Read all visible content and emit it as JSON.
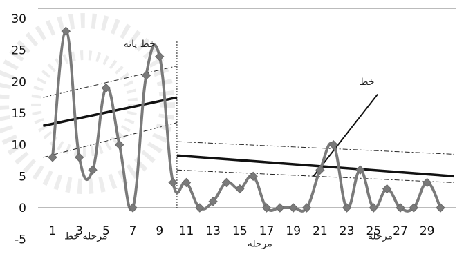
{
  "chart_data": {
    "type": "line",
    "title": "",
    "xlabel": "",
    "ylabel": "",
    "ylim": [
      -5,
      30
    ],
    "xlim": [
      1,
      30
    ],
    "y_ticks": [
      "-5",
      "0",
      "5",
      "10",
      "15",
      "20",
      "25",
      "30"
    ],
    "x_ticks": [
      "1",
      "3",
      "5",
      "7",
      "9",
      "11",
      "13",
      "15",
      "17",
      "19",
      "21",
      "23",
      "25",
      "27",
      "29"
    ],
    "x": [
      1,
      2,
      3,
      4,
      5,
      6,
      7,
      8,
      9,
      10,
      11,
      12,
      13,
      14,
      15,
      16,
      17,
      18,
      19,
      20,
      21,
      22,
      23,
      24,
      25,
      26,
      27,
      28,
      29,
      30
    ],
    "series": [
      {
        "name": "",
        "color": "#7a7a7a",
        "values": [
          8,
          28,
          8,
          6,
          19,
          10,
          0,
          21,
          24,
          4,
          4,
          0,
          1,
          4,
          3,
          5,
          0,
          0,
          0,
          0,
          6,
          10,
          0,
          6,
          0,
          3,
          0,
          0,
          4,
          0
        ]
      }
    ],
    "trend_lines": [
      {
        "style": "solid",
        "from": [
          0.3,
          13
        ],
        "to": [
          10.3,
          17.5
        ]
      },
      {
        "style": "dashdot",
        "from": [
          0.3,
          17.5
        ],
        "to": [
          10.3,
          22.5
        ]
      },
      {
        "style": "dashdot",
        "from": [
          0.3,
          8
        ],
        "to": [
          10.3,
          13.5
        ]
      },
      {
        "style": "solid",
        "from": [
          10.3,
          8.3
        ],
        "to": [
          31,
          5
        ]
      },
      {
        "style": "dashdot",
        "from": [
          10.3,
          10.5
        ],
        "to": [
          31,
          8.5
        ]
      },
      {
        "style": "dashdot",
        "from": [
          10.3,
          6
        ],
        "to": [
          31,
          4
        ]
      }
    ],
    "phase_divider_x": 10.3,
    "annotations": [
      {
        "text": "خط پایه",
        "x": 7.5,
        "y": 25.5
      },
      {
        "text": "خط",
        "x": 24.5,
        "y": 19.5
      },
      {
        "text": "مرحله خط",
        "x": 3.5,
        "y": -5
      },
      {
        "text": "مرحله",
        "x": 16.5,
        "y": -6.2
      },
      {
        "text": "مرحله",
        "x": 25.5,
        "y": -5
      }
    ],
    "pointer_line": {
      "from": [
        20.5,
        5
      ],
      "to": [
        25.3,
        18
      ]
    },
    "grid": false,
    "legend": "none"
  }
}
